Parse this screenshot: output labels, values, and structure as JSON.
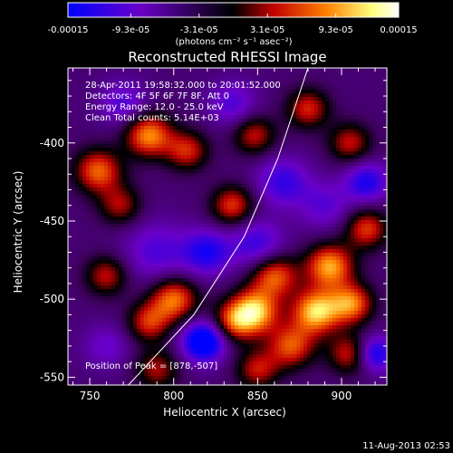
{
  "chart_data": {
    "type": "heatmap",
    "title": "Reconstructed RHESSI Image",
    "xlabel": "Heliocentric X (arcsec)",
    "ylabel": "Heliocentric Y (arcsec)",
    "xlim": [
      737,
      927
    ],
    "ylim": [
      -555,
      -352
    ],
    "x_ticks": [
      "750",
      "800",
      "850",
      "900"
    ],
    "y_ticks": [
      "-400",
      "-450",
      "-500",
      "-550"
    ],
    "colorbar": {
      "ticks": [
        "-0.00015",
        "-9.3e-05",
        "-3.1e-05",
        "3.1e-05",
        "9.3e-05",
        "0.00015"
      ],
      "unit": "(photons cm⁻² s⁻¹ asec⁻²)",
      "range": [
        -0.00015,
        0.00015
      ],
      "colormap": [
        "#0000ff",
        "#6a00c8",
        "#000000",
        "#c00000",
        "#ff8000",
        "#ffff80",
        "#ffffff"
      ]
    },
    "annotations": {
      "time": "28-Apr-2011 19:58:32.000 to 20:01:52.000",
      "detectors": "Detectors: 4F 5F 6F 7F 8F, Att 0",
      "energy": "Energy Range: 12.0 - 25.0 keV",
      "clean": "Clean     Total counts: 5.14E+03",
      "peak": "Position of Peak = [878,-507]"
    },
    "peak_position": [
      878,
      -507
    ],
    "limb_curve": [
      [
        773,
        -555
      ],
      [
        812,
        -510
      ],
      [
        842,
        -460
      ],
      [
        862,
        -410
      ],
      [
        880,
        -352
      ]
    ],
    "blobs": [
      {
        "x": 848,
        "y": -508,
        "v": 1.0,
        "s": 10
      },
      {
        "x": 885,
        "y": -508,
        "v": 1.0,
        "s": 10
      },
      {
        "x": 906,
        "y": -503,
        "v": 0.8,
        "s": 9
      },
      {
        "x": 893,
        "y": -479,
        "v": 0.9,
        "s": 10
      },
      {
        "x": 860,
        "y": -485,
        "v": 0.75,
        "s": 10
      },
      {
        "x": 800,
        "y": -500,
        "v": 0.8,
        "s": 10
      },
      {
        "x": 785,
        "y": -515,
        "v": 0.6,
        "s": 9
      },
      {
        "x": 870,
        "y": -530,
        "v": 0.7,
        "s": 10
      },
      {
        "x": 905,
        "y": -535,
        "v": 0.6,
        "s": 9
      },
      {
        "x": 850,
        "y": -545,
        "v": 0.55,
        "s": 9
      },
      {
        "x": 785,
        "y": -395,
        "v": 0.85,
        "s": 10
      },
      {
        "x": 755,
        "y": -418,
        "v": 0.75,
        "s": 10
      },
      {
        "x": 808,
        "y": -405,
        "v": 0.6,
        "s": 9
      },
      {
        "x": 768,
        "y": -440,
        "v": 0.5,
        "s": 9
      },
      {
        "x": 835,
        "y": -440,
        "v": 0.65,
        "s": 9
      },
      {
        "x": 848,
        "y": -395,
        "v": 0.55,
        "s": 9
      },
      {
        "x": 880,
        "y": -378,
        "v": 0.6,
        "s": 9
      },
      {
        "x": 905,
        "y": -400,
        "v": 0.55,
        "s": 9
      },
      {
        "x": 915,
        "y": -455,
        "v": 0.65,
        "s": 9
      },
      {
        "x": 835,
        "y": -515,
        "v": 0.6,
        "s": 9
      },
      {
        "x": 760,
        "y": -485,
        "v": 0.55,
        "s": 9
      },
      {
        "x": 790,
        "y": -545,
        "v": 0.5,
        "s": 9
      },
      {
        "x": 790,
        "y": -470,
        "v": -0.4,
        "s": 14
      },
      {
        "x": 818,
        "y": -527,
        "v": -1.0,
        "s": 9
      },
      {
        "x": 820,
        "y": -470,
        "v": -0.6,
        "s": 10
      },
      {
        "x": 850,
        "y": -465,
        "v": -0.5,
        "s": 11
      },
      {
        "x": 865,
        "y": -425,
        "v": -0.5,
        "s": 11
      },
      {
        "x": 915,
        "y": -425,
        "v": -0.6,
        "s": 9
      },
      {
        "x": 920,
        "y": -535,
        "v": -0.7,
        "s": 8
      },
      {
        "x": 770,
        "y": -375,
        "v": -0.4,
        "s": 10
      },
      {
        "x": 890,
        "y": -440,
        "v": -0.35,
        "s": 11
      },
      {
        "x": 760,
        "y": -530,
        "v": -0.3,
        "s": 10
      },
      {
        "x": 835,
        "y": -375,
        "v": -0.4,
        "s": 10
      }
    ]
  },
  "footer": {
    "date": "11-Aug-2013 02:53"
  }
}
